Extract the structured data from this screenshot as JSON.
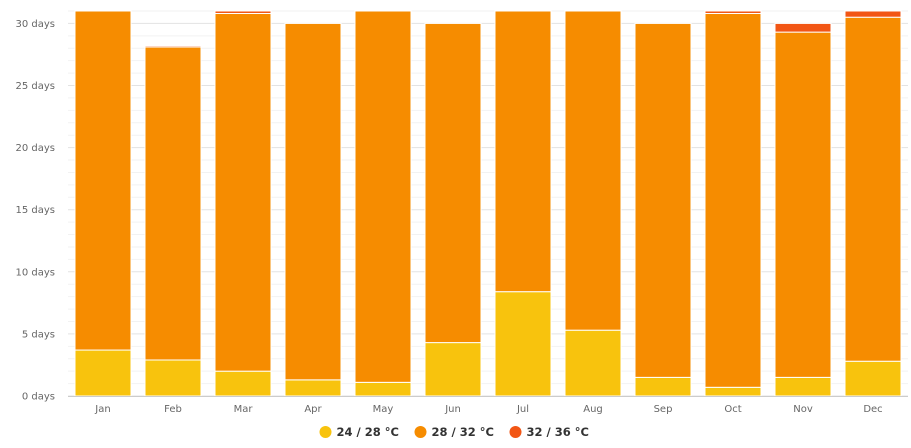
{
  "chart_data": {
    "type": "bar",
    "stacked": true,
    "title": "",
    "xlabel": "",
    "ylabel": "",
    "ylim": [
      0,
      31
    ],
    "y_ticks": [
      0,
      5,
      10,
      15,
      20,
      25,
      30
    ],
    "y_tick_labels": [
      "0 days",
      "5 days",
      "10 days",
      "15 days",
      "20 days",
      "25 days",
      "30 days"
    ],
    "categories": [
      "Jan",
      "Feb",
      "Mar",
      "Apr",
      "May",
      "Jun",
      "Jul",
      "Aug",
      "Sep",
      "Oct",
      "Nov",
      "Dec"
    ],
    "series": [
      {
        "name": "24 / 28 °C",
        "color": "#f8c30d",
        "values": [
          3.7,
          2.9,
          2.0,
          1.3,
          1.1,
          4.3,
          8.4,
          5.3,
          1.5,
          0.7,
          1.5,
          2.8
        ]
      },
      {
        "name": "28 / 32 °C",
        "color": "#f68c00",
        "values": [
          27.3,
          25.2,
          28.8,
          28.7,
          29.9,
          25.7,
          22.6,
          25.7,
          28.5,
          30.1,
          27.8,
          27.7
        ]
      },
      {
        "name": "32 / 36 °C",
        "color": "#f25615",
        "values": [
          0.0,
          0.1,
          0.2,
          0.0,
          0.0,
          0.0,
          0.0,
          0.0,
          0.0,
          0.2,
          0.7,
          0.5
        ]
      }
    ],
    "grid": true,
    "legend_position": "bottom-center"
  }
}
